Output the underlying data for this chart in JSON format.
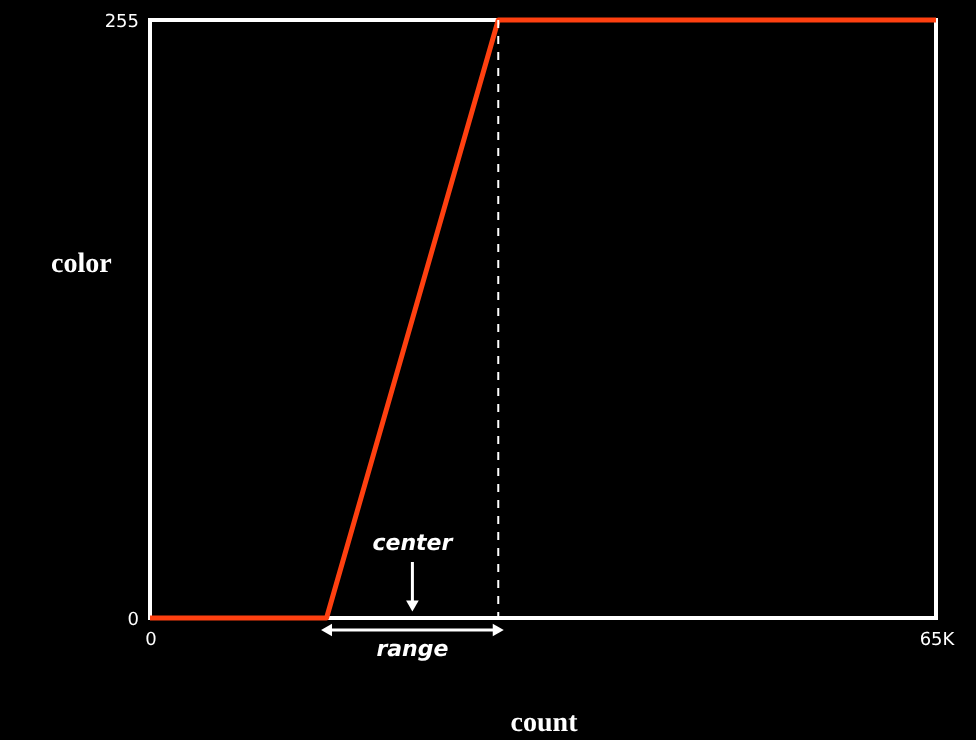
{
  "chart_data": {
    "type": "line",
    "xlabel": "count",
    "ylabel": "color",
    "series": [
      {
        "color": "#ff4010",
        "x": [
          0,
          14600,
          28800,
          65000
        ],
        "values": [
          0,
          0,
          255,
          255
        ]
      }
    ],
    "xlim": [
      0,
      65000
    ],
    "xticks": [
      0,
      {
        "value": 65000,
        "label": "65K"
      }
    ],
    "ylim": [
      0,
      255
    ],
    "yticks": [
      0,
      255
    ],
    "ref_lines": [
      {
        "axis": "x",
        "value": 28800,
        "color": "#ffffff",
        "line_style": "dashed"
      }
    ],
    "annotations": [
      "center",
      "range"
    ],
    "grid": false,
    "marker": "none",
    "line_style": "solid"
  }
}
